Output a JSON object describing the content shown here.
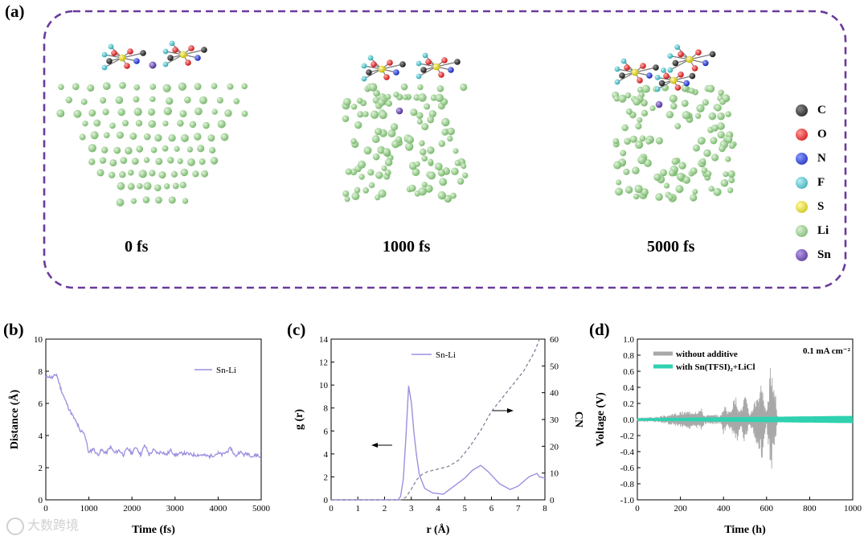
{
  "panel_a": {
    "label": "(a)",
    "frames": [
      "0 fs",
      "1000 fs",
      "5000 fs"
    ],
    "legend": [
      {
        "symbol": "C",
        "color": "#2b2b2b"
      },
      {
        "symbol": "O",
        "color": "#e0201e"
      },
      {
        "symbol": "N",
        "color": "#1d2fd6"
      },
      {
        "symbol": "F",
        "color": "#37b9c4"
      },
      {
        "symbol": "S",
        "color": "#e8dc21"
      },
      {
        "symbol": "Li",
        "color": "#8fca85"
      },
      {
        "symbol": "Sn",
        "color": "#6a4aa8"
      }
    ],
    "frame_color": "#6a3a9c"
  },
  "panel_b": {
    "label": "(b)"
  },
  "panel_c": {
    "label": "(c)"
  },
  "panel_d": {
    "label": "(d)"
  },
  "watermark": "大数跨境",
  "chart_data": [
    {
      "id": "b",
      "type": "line",
      "xlabel": "Time (fs)",
      "ylabel": "Distance (Å)",
      "xlim": [
        0,
        5000
      ],
      "ylim": [
        0,
        10
      ],
      "xticks": [
        0,
        1000,
        2000,
        3000,
        4000,
        5000
      ],
      "yticks": [
        0,
        2,
        4,
        6,
        8,
        10
      ],
      "legend": "top-right",
      "series": [
        {
          "name": "Sn-Li",
          "color": "#9b8fe0",
          "x": [
            0,
            50,
            150,
            250,
            350,
            450,
            550,
            650,
            750,
            800,
            850,
            900,
            950,
            1000,
            1100,
            1200,
            1300,
            1400,
            1500,
            1600,
            1700,
            1800,
            1900,
            2000,
            2100,
            2200,
            2300,
            2400,
            2500,
            2600,
            2700,
            2800,
            2900,
            3000,
            3200,
            3400,
            3600,
            3800,
            4000,
            4100,
            4200,
            4300,
            4400,
            4500,
            4600,
            4700,
            4800,
            4900,
            5000
          ],
          "y": [
            7.6,
            7.7,
            7.6,
            7.8,
            6.9,
            6.2,
            5.6,
            5.1,
            4.6,
            4.2,
            4.3,
            4.1,
            3.5,
            2.9,
            3.2,
            2.8,
            3.1,
            2.9,
            3.3,
            2.9,
            3.1,
            2.8,
            3.2,
            2.9,
            3.3,
            2.8,
            3.4,
            2.8,
            3.1,
            2.9,
            3.0,
            2.8,
            3.1,
            2.8,
            2.9,
            2.8,
            2.8,
            2.7,
            2.9,
            2.8,
            3.0,
            3.2,
            2.7,
            3.0,
            2.8,
            2.9,
            2.7,
            2.8,
            2.6
          ]
        }
      ]
    },
    {
      "id": "c",
      "type": "line",
      "xlabel": "r (Å)",
      "ylabel": "g (r)",
      "y2label": "CN",
      "xlim": [
        0,
        8
      ],
      "ylim": [
        0,
        14
      ],
      "y2lim": [
        0,
        60
      ],
      "xticks": [
        0,
        1,
        2,
        3,
        4,
        5,
        6,
        7,
        8
      ],
      "yticks": [
        0,
        2,
        4,
        6,
        8,
        10,
        12,
        14
      ],
      "y2ticks": [
        0,
        10,
        20,
        30,
        40,
        50,
        60
      ],
      "legend": "top-left",
      "series": [
        {
          "name": "Sn-Li",
          "axis": "left",
          "color": "#9b8fe0",
          "x": [
            0,
            2.5,
            2.6,
            2.7,
            2.8,
            2.9,
            3.0,
            3.1,
            3.2,
            3.3,
            3.5,
            3.8,
            4.2,
            4.6,
            5.0,
            5.3,
            5.6,
            5.9,
            6.3,
            6.7,
            7.0,
            7.4,
            7.7,
            7.8,
            8.0
          ],
          "y": [
            0,
            0,
            0.3,
            1.8,
            5.5,
            9.9,
            8.5,
            5.8,
            3.8,
            2.2,
            1.0,
            0.6,
            0.5,
            1.2,
            1.9,
            2.6,
            3.0,
            2.4,
            1.4,
            0.9,
            1.2,
            2.0,
            2.3,
            2.0,
            1.9
          ]
        },
        {
          "name": "CN",
          "axis": "right",
          "color": "#8a7e9a",
          "dashed": true,
          "x": [
            0,
            2.6,
            2.8,
            3.0,
            3.2,
            3.4,
            3.6,
            4.0,
            4.4,
            4.8,
            5.2,
            5.6,
            6.0,
            6.4,
            6.8,
            7.2,
            7.6,
            7.8
          ],
          "y": [
            0,
            0,
            1,
            4,
            7.5,
            9.5,
            10.5,
            11.5,
            12.5,
            15,
            20,
            26,
            33,
            38,
            43,
            48,
            55,
            60
          ]
        }
      ],
      "annotations": [
        "arrow-left",
        "arrow-right"
      ]
    },
    {
      "id": "d",
      "type": "line",
      "xlabel": "Time (h)",
      "ylabel": "Voltage (V)",
      "xlim": [
        0,
        1000
      ],
      "ylim": [
        -1.0,
        1.0
      ],
      "xticks": [
        0,
        200,
        400,
        600,
        800,
        1000
      ],
      "yticks": [
        -1.0,
        -0.8,
        -0.6,
        -0.4,
        -0.2,
        0.0,
        0.2,
        0.4,
        0.6,
        0.8,
        1.0
      ],
      "legend": "top-left",
      "annotation_text": "0.1 mA cm⁻²",
      "series": [
        {
          "name": "without additive",
          "color": "#a8a8a8",
          "envelope": [
            [
              0,
              0.02
            ],
            [
              100,
              0.03
            ],
            [
              200,
              0.08
            ],
            [
              300,
              0.12
            ],
            [
              310,
              0.05
            ],
            [
              390,
              0.05
            ],
            [
              400,
              0.18
            ],
            [
              420,
              0.08
            ],
            [
              460,
              0.26
            ],
            [
              480,
              0.1
            ],
            [
              500,
              0.3
            ],
            [
              520,
              0.05
            ],
            [
              580,
              0.45
            ],
            [
              600,
              0.05
            ],
            [
              620,
              0.6
            ],
            [
              640,
              0.3
            ],
            [
              650,
              0.05
            ]
          ]
        },
        {
          "name": "with Sn(TFSI)₂+LiCl",
          "color": "#2fd1b0",
          "envelope": [
            [
              0,
              0.015
            ],
            [
              1000,
              0.045
            ]
          ]
        }
      ]
    }
  ]
}
